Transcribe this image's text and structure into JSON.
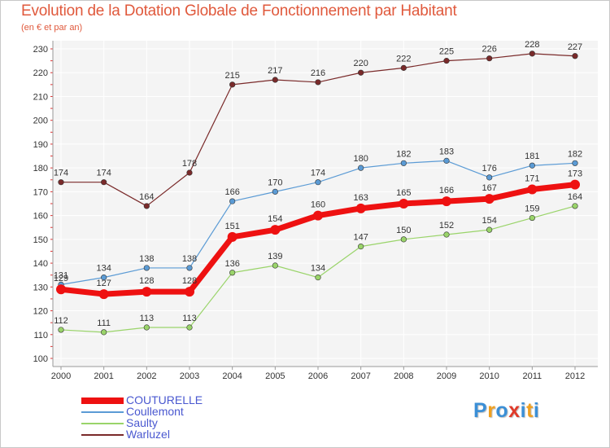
{
  "title": "Evolution de la Dotation Globale de Fonctionnement par Habitant",
  "subtitle": "(en € et par an)",
  "logo": {
    "text": "Proxiti",
    "letters": [
      "P",
      "r",
      "o",
      "x",
      "i",
      "t",
      "i"
    ],
    "colors": [
      "#3b8fd6",
      "#f0a020",
      "#3b8fd6",
      "#e03a2a",
      "#3b8fd6",
      "#f0a020",
      "#3b8fd6"
    ]
  },
  "chart_data": {
    "type": "line",
    "title": "Evolution de la Dotation Globale de Fonctionnement par Habitant",
    "subtitle": "(en € et par an)",
    "xlabel": "",
    "ylabel": "",
    "categories": [
      "2000",
      "2001",
      "2002",
      "2003",
      "2004",
      "2005",
      "2006",
      "2007",
      "2008",
      "2009",
      "2010",
      "2011",
      "2012"
    ],
    "ylim": [
      100,
      230
    ],
    "yticks": [
      100,
      110,
      120,
      130,
      140,
      150,
      160,
      170,
      180,
      190,
      200,
      210,
      220,
      230
    ],
    "grid": true,
    "legend_position": "bottom-left",
    "series": [
      {
        "name": "Warluzel",
        "color": "#7a2a2a",
        "emphasis": false,
        "values": [
          174,
          174,
          164,
          178,
          215,
          217,
          216,
          220,
          222,
          225,
          226,
          228,
          227
        ]
      },
      {
        "name": "Coullemont",
        "color": "#5b9bd5",
        "emphasis": false,
        "values": [
          131,
          134,
          138,
          138,
          166,
          170,
          174,
          180,
          182,
          183,
          176,
          181,
          182
        ]
      },
      {
        "name": "Saulty",
        "color": "#9ad46a",
        "emphasis": false,
        "values": [
          112,
          111,
          113,
          113,
          136,
          139,
          134,
          147,
          150,
          152,
          154,
          159,
          164
        ]
      },
      {
        "name": "COUTURELLE",
        "color": "#ee1111",
        "emphasis": true,
        "values": [
          129,
          127,
          128,
          128,
          151,
          154,
          160,
          163,
          165,
          166,
          167,
          171,
          173
        ]
      }
    ],
    "legend_order": [
      "COUTURELLE",
      "Coullemont",
      "Saulty",
      "Warluzel"
    ]
  }
}
